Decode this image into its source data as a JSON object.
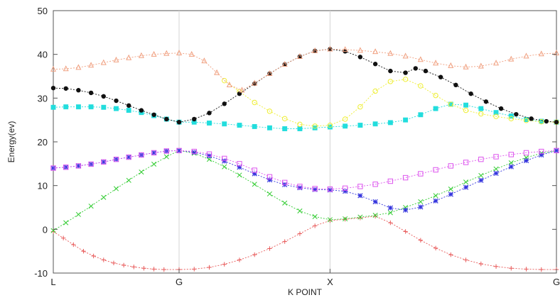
{
  "chart_data": {
    "type": "line",
    "xlabel": "K POINT",
    "ylabel": "Energy(ev)",
    "ylim": [
      -10,
      50
    ],
    "yticks": [
      -10,
      0,
      10,
      20,
      30,
      40,
      50
    ],
    "xlim": [
      0,
      1
    ],
    "xticks": [
      {
        "label": "L",
        "x": 0.0
      },
      {
        "label": "G",
        "x": 0.25
      },
      {
        "label": "X",
        "x": 0.55
      },
      {
        "label": "G",
        "x": 1.0
      }
    ],
    "grid": "vertical lines at k-points",
    "series": [
      {
        "color": "#e85a5a",
        "marker": "plus",
        "points": [
          [
            0.0,
            -0.5
          ],
          [
            0.02,
            -2.0
          ],
          [
            0.04,
            -3.5
          ],
          [
            0.06,
            -5.0
          ],
          [
            0.08,
            -6.1
          ],
          [
            0.1,
            -7.0
          ],
          [
            0.12,
            -7.7
          ],
          [
            0.14,
            -8.2
          ],
          [
            0.16,
            -8.6
          ],
          [
            0.18,
            -8.9
          ],
          [
            0.2,
            -9.1
          ],
          [
            0.22,
            -9.2
          ],
          [
            0.25,
            -9.2
          ],
          [
            0.28,
            -9.1
          ],
          [
            0.31,
            -8.7
          ],
          [
            0.34,
            -8.0
          ],
          [
            0.37,
            -7.0
          ],
          [
            0.4,
            -5.8
          ],
          [
            0.43,
            -4.4
          ],
          [
            0.46,
            -2.8
          ],
          [
            0.49,
            -1.0
          ],
          [
            0.52,
            0.8
          ],
          [
            0.55,
            2.0
          ],
          [
            0.58,
            2.3
          ],
          [
            0.61,
            2.6
          ],
          [
            0.64,
            3.0
          ],
          [
            0.67,
            1.5
          ],
          [
            0.7,
            -0.5
          ],
          [
            0.73,
            -2.5
          ],
          [
            0.76,
            -4.3
          ],
          [
            0.79,
            -5.8
          ],
          [
            0.82,
            -7.0
          ],
          [
            0.85,
            -7.9
          ],
          [
            0.88,
            -8.5
          ],
          [
            0.91,
            -8.9
          ],
          [
            0.94,
            -9.1
          ],
          [
            0.97,
            -9.2
          ],
          [
            1.0,
            -9.2
          ]
        ]
      },
      {
        "color": "#33cc33",
        "marker": "cross",
        "points": [
          [
            0.0,
            -0.3
          ],
          [
            0.025,
            1.5
          ],
          [
            0.05,
            3.4
          ],
          [
            0.075,
            5.3
          ],
          [
            0.1,
            7.3
          ],
          [
            0.125,
            9.3
          ],
          [
            0.15,
            11.2
          ],
          [
            0.175,
            13.1
          ],
          [
            0.2,
            14.9
          ],
          [
            0.225,
            16.6
          ],
          [
            0.25,
            18.0
          ],
          [
            0.28,
            17.4
          ],
          [
            0.31,
            16.0
          ],
          [
            0.34,
            14.3
          ],
          [
            0.37,
            12.4
          ],
          [
            0.4,
            10.3
          ],
          [
            0.43,
            8.1
          ],
          [
            0.46,
            6.0
          ],
          [
            0.49,
            4.2
          ],
          [
            0.52,
            2.9
          ],
          [
            0.55,
            2.2
          ],
          [
            0.58,
            2.4
          ],
          [
            0.61,
            2.8
          ],
          [
            0.64,
            3.2
          ],
          [
            0.67,
            3.8
          ],
          [
            0.7,
            5.0
          ],
          [
            0.73,
            6.3
          ],
          [
            0.76,
            7.7
          ],
          [
            0.79,
            9.2
          ],
          [
            0.82,
            10.8
          ],
          [
            0.85,
            12.3
          ],
          [
            0.88,
            13.8
          ],
          [
            0.91,
            15.2
          ],
          [
            0.94,
            16.4
          ],
          [
            0.97,
            17.4
          ],
          [
            1.0,
            18.0
          ]
        ]
      },
      {
        "color": "#3333dd",
        "marker": "star",
        "points": [
          [
            0.0,
            14.0
          ],
          [
            0.025,
            14.2
          ],
          [
            0.05,
            14.5
          ],
          [
            0.075,
            14.9
          ],
          [
            0.1,
            15.4
          ],
          [
            0.125,
            16.0
          ],
          [
            0.15,
            16.5
          ],
          [
            0.175,
            17.0
          ],
          [
            0.2,
            17.5
          ],
          [
            0.225,
            17.9
          ],
          [
            0.25,
            18.0
          ],
          [
            0.28,
            17.6
          ],
          [
            0.31,
            16.8
          ],
          [
            0.34,
            15.6
          ],
          [
            0.37,
            14.2
          ],
          [
            0.4,
            12.7
          ],
          [
            0.43,
            11.3
          ],
          [
            0.46,
            10.2
          ],
          [
            0.49,
            9.5
          ],
          [
            0.52,
            9.1
          ],
          [
            0.55,
            9.0
          ],
          [
            0.58,
            8.7
          ],
          [
            0.61,
            7.7
          ],
          [
            0.64,
            6.3
          ],
          [
            0.67,
            4.9
          ],
          [
            0.7,
            4.4
          ],
          [
            0.73,
            5.1
          ],
          [
            0.76,
            6.5
          ],
          [
            0.79,
            8.0
          ],
          [
            0.82,
            9.6
          ],
          [
            0.85,
            11.2
          ],
          [
            0.88,
            12.8
          ],
          [
            0.91,
            14.3
          ],
          [
            0.94,
            15.7
          ],
          [
            0.97,
            17.0
          ],
          [
            1.0,
            18.0
          ]
        ]
      },
      {
        "color": "#dd55ee",
        "marker": "square-open",
        "points": [
          [
            0.0,
            14.0
          ],
          [
            0.025,
            14.2
          ],
          [
            0.05,
            14.5
          ],
          [
            0.075,
            14.9
          ],
          [
            0.1,
            15.4
          ],
          [
            0.125,
            16.0
          ],
          [
            0.15,
            16.5
          ],
          [
            0.175,
            17.0
          ],
          [
            0.2,
            17.5
          ],
          [
            0.225,
            17.9
          ],
          [
            0.25,
            18.0
          ],
          [
            0.28,
            17.8
          ],
          [
            0.31,
            17.2
          ],
          [
            0.34,
            16.2
          ],
          [
            0.37,
            15.0
          ],
          [
            0.4,
            13.5
          ],
          [
            0.43,
            12.0
          ],
          [
            0.46,
            10.7
          ],
          [
            0.49,
            9.8
          ],
          [
            0.52,
            9.3
          ],
          [
            0.55,
            9.2
          ],
          [
            0.58,
            9.4
          ],
          [
            0.61,
            9.8
          ],
          [
            0.64,
            10.3
          ],
          [
            0.67,
            11.0
          ],
          [
            0.7,
            11.8
          ],
          [
            0.73,
            12.7
          ],
          [
            0.76,
            13.6
          ],
          [
            0.79,
            14.5
          ],
          [
            0.82,
            15.3
          ],
          [
            0.85,
            16.0
          ],
          [
            0.88,
            16.6
          ],
          [
            0.91,
            17.1
          ],
          [
            0.94,
            17.5
          ],
          [
            0.97,
            17.8
          ],
          [
            1.0,
            18.0
          ]
        ]
      },
      {
        "color": "#22dddd",
        "marker": "square-filled",
        "points": [
          [
            0.0,
            27.9
          ],
          [
            0.025,
            28.0
          ],
          [
            0.05,
            28.0
          ],
          [
            0.075,
            28.0
          ],
          [
            0.1,
            27.9
          ],
          [
            0.125,
            27.6
          ],
          [
            0.15,
            27.2
          ],
          [
            0.175,
            26.7
          ],
          [
            0.2,
            26.0
          ],
          [
            0.225,
            25.2
          ],
          [
            0.25,
            24.5
          ],
          [
            0.28,
            24.5
          ],
          [
            0.31,
            24.3
          ],
          [
            0.34,
            24.1
          ],
          [
            0.37,
            23.8
          ],
          [
            0.4,
            23.5
          ],
          [
            0.43,
            23.2
          ],
          [
            0.46,
            23.0
          ],
          [
            0.49,
            23.0
          ],
          [
            0.52,
            23.2
          ],
          [
            0.55,
            23.4
          ],
          [
            0.58,
            23.6
          ],
          [
            0.61,
            23.8
          ],
          [
            0.64,
            24.1
          ],
          [
            0.67,
            24.4
          ],
          [
            0.7,
            25.0
          ],
          [
            0.73,
            26.2
          ],
          [
            0.76,
            27.6
          ],
          [
            0.79,
            28.6
          ],
          [
            0.82,
            28.4
          ],
          [
            0.85,
            27.6
          ],
          [
            0.88,
            26.7
          ],
          [
            0.91,
            25.9
          ],
          [
            0.94,
            25.1
          ],
          [
            0.97,
            24.7
          ],
          [
            1.0,
            24.5
          ]
        ]
      },
      {
        "color": "#eeee33",
        "marker": "circle-open",
        "points": [
          [
            0.34,
            34.0
          ],
          [
            0.37,
            31.5
          ],
          [
            0.4,
            29.0
          ],
          [
            0.43,
            27.0
          ],
          [
            0.46,
            25.3
          ],
          [
            0.49,
            24.0
          ],
          [
            0.52,
            23.6
          ],
          [
            0.55,
            23.8
          ],
          [
            0.58,
            25.2
          ],
          [
            0.61,
            28.0
          ],
          [
            0.64,
            31.6
          ],
          [
            0.67,
            33.8
          ],
          [
            0.7,
            34.3
          ],
          [
            0.73,
            32.8
          ],
          [
            0.76,
            30.6
          ],
          [
            0.79,
            28.6
          ],
          [
            0.82,
            27.2
          ],
          [
            0.85,
            26.4
          ],
          [
            0.88,
            25.8
          ],
          [
            0.91,
            25.3
          ],
          [
            0.94,
            24.9
          ],
          [
            0.97,
            24.6
          ],
          [
            1.0,
            24.5
          ]
        ]
      },
      {
        "color": "#111111",
        "marker": "circle-filled",
        "points": [
          [
            0.0,
            32.3
          ],
          [
            0.025,
            32.2
          ],
          [
            0.05,
            31.8
          ],
          [
            0.075,
            31.2
          ],
          [
            0.1,
            30.4
          ],
          [
            0.125,
            29.4
          ],
          [
            0.15,
            28.3
          ],
          [
            0.175,
            27.2
          ],
          [
            0.2,
            26.2
          ],
          [
            0.225,
            25.2
          ],
          [
            0.25,
            24.5
          ],
          [
            0.28,
            25.2
          ],
          [
            0.31,
            26.6
          ],
          [
            0.34,
            28.7
          ],
          [
            0.37,
            31.0
          ],
          [
            0.4,
            33.3
          ],
          [
            0.43,
            35.6
          ],
          [
            0.46,
            37.7
          ],
          [
            0.49,
            39.5
          ],
          [
            0.52,
            40.8
          ],
          [
            0.55,
            41.2
          ],
          [
            0.58,
            40.7
          ],
          [
            0.61,
            39.4
          ],
          [
            0.64,
            37.8
          ],
          [
            0.67,
            36.2
          ],
          [
            0.7,
            35.8
          ],
          [
            0.72,
            36.8
          ],
          [
            0.74,
            36.2
          ],
          [
            0.77,
            34.8
          ],
          [
            0.8,
            33.0
          ],
          [
            0.83,
            31.0
          ],
          [
            0.86,
            29.2
          ],
          [
            0.89,
            27.6
          ],
          [
            0.92,
            26.3
          ],
          [
            0.95,
            25.3
          ],
          [
            0.98,
            24.7
          ],
          [
            1.0,
            24.5
          ]
        ]
      },
      {
        "color": "#f0a080",
        "marker": "triangle-open",
        "points": [
          [
            0.0,
            36.6
          ],
          [
            0.025,
            36.7
          ],
          [
            0.05,
            37.0
          ],
          [
            0.075,
            37.5
          ],
          [
            0.1,
            38.1
          ],
          [
            0.125,
            38.7
          ],
          [
            0.15,
            39.2
          ],
          [
            0.175,
            39.7
          ],
          [
            0.2,
            40.0
          ],
          [
            0.225,
            40.2
          ],
          [
            0.25,
            40.3
          ],
          [
            0.275,
            40.0
          ],
          [
            0.3,
            38.5
          ],
          [
            0.325,
            35.8
          ],
          [
            0.35,
            33.0
          ],
          [
            0.375,
            31.8
          ],
          [
            0.4,
            33.4
          ],
          [
            0.43,
            35.6
          ],
          [
            0.46,
            37.7
          ],
          [
            0.49,
            39.5
          ],
          [
            0.52,
            40.8
          ],
          [
            0.55,
            41.2
          ],
          [
            0.58,
            41.1
          ],
          [
            0.61,
            40.9
          ],
          [
            0.64,
            40.6
          ],
          [
            0.67,
            40.2
          ],
          [
            0.7,
            39.6
          ],
          [
            0.73,
            38.8
          ],
          [
            0.76,
            38.0
          ],
          [
            0.79,
            37.4
          ],
          [
            0.82,
            37.1
          ],
          [
            0.85,
            37.3
          ],
          [
            0.88,
            38.0
          ],
          [
            0.91,
            38.9
          ],
          [
            0.94,
            39.6
          ],
          [
            0.97,
            40.1
          ],
          [
            1.0,
            40.3
          ]
        ]
      }
    ]
  }
}
